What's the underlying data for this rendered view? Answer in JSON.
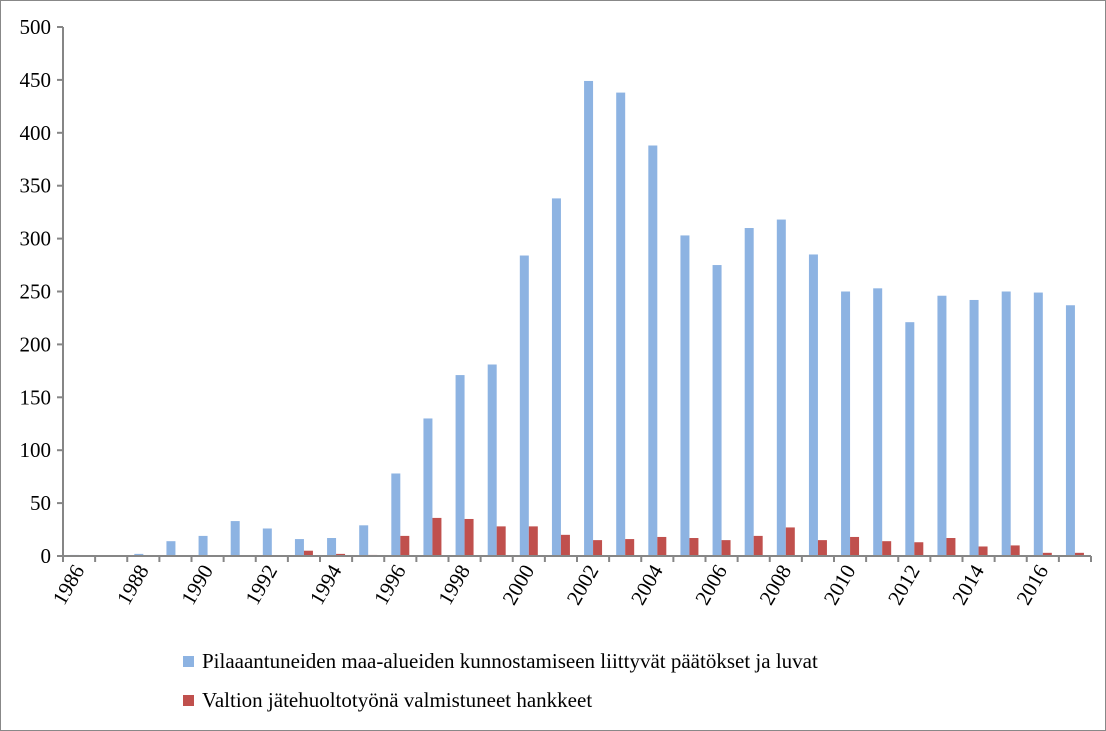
{
  "chart_data": {
    "type": "bar",
    "categories": [
      "1986",
      "1987",
      "1988",
      "1989",
      "1990",
      "1991",
      "1992",
      "1993",
      "1994",
      "1995",
      "1996",
      "1997",
      "1998",
      "1999",
      "2000",
      "2001",
      "2002",
      "2003",
      "2004",
      "2005",
      "2006",
      "2007",
      "2008",
      "2009",
      "2010",
      "2011",
      "2012",
      "2013",
      "2014",
      "2015",
      "2016",
      "2017"
    ],
    "tick_labels_shown": [
      "1986",
      "1988",
      "1990",
      "1992",
      "1994",
      "1996",
      "1998",
      "2000",
      "2002",
      "2004",
      "2006",
      "2008",
      "2010",
      "2012",
      "2014",
      "2016"
    ],
    "series": [
      {
        "name": "Pilaaantuneiden maa-alueiden kunnostamiseen liittyvät päätökset ja luvat",
        "color": "#8db3e2",
        "values": [
          1,
          0,
          2,
          14,
          19,
          33,
          26,
          16,
          17,
          29,
          78,
          130,
          171,
          181,
          284,
          338,
          449,
          438,
          388,
          303,
          275,
          310,
          318,
          285,
          250,
          253,
          221,
          246,
          242,
          250,
          249,
          237
        ]
      },
      {
        "name": "Valtion jätehuoltotyönä valmistuneet hankkeet",
        "color": "#c0504d",
        "values": [
          0,
          0,
          0,
          0,
          0,
          0,
          0,
          5,
          2,
          1,
          19,
          36,
          35,
          28,
          28,
          20,
          15,
          16,
          18,
          17,
          15,
          19,
          27,
          15,
          18,
          14,
          13,
          17,
          9,
          10,
          3,
          3
        ]
      }
    ],
    "yticks": [
      0,
      50,
      100,
      150,
      200,
      250,
      300,
      350,
      400,
      450,
      500
    ],
    "ylim": [
      0,
      500
    ],
    "grid": false,
    "legend_position": "bottom",
    "title": "",
    "xlabel": "",
    "ylabel": ""
  }
}
